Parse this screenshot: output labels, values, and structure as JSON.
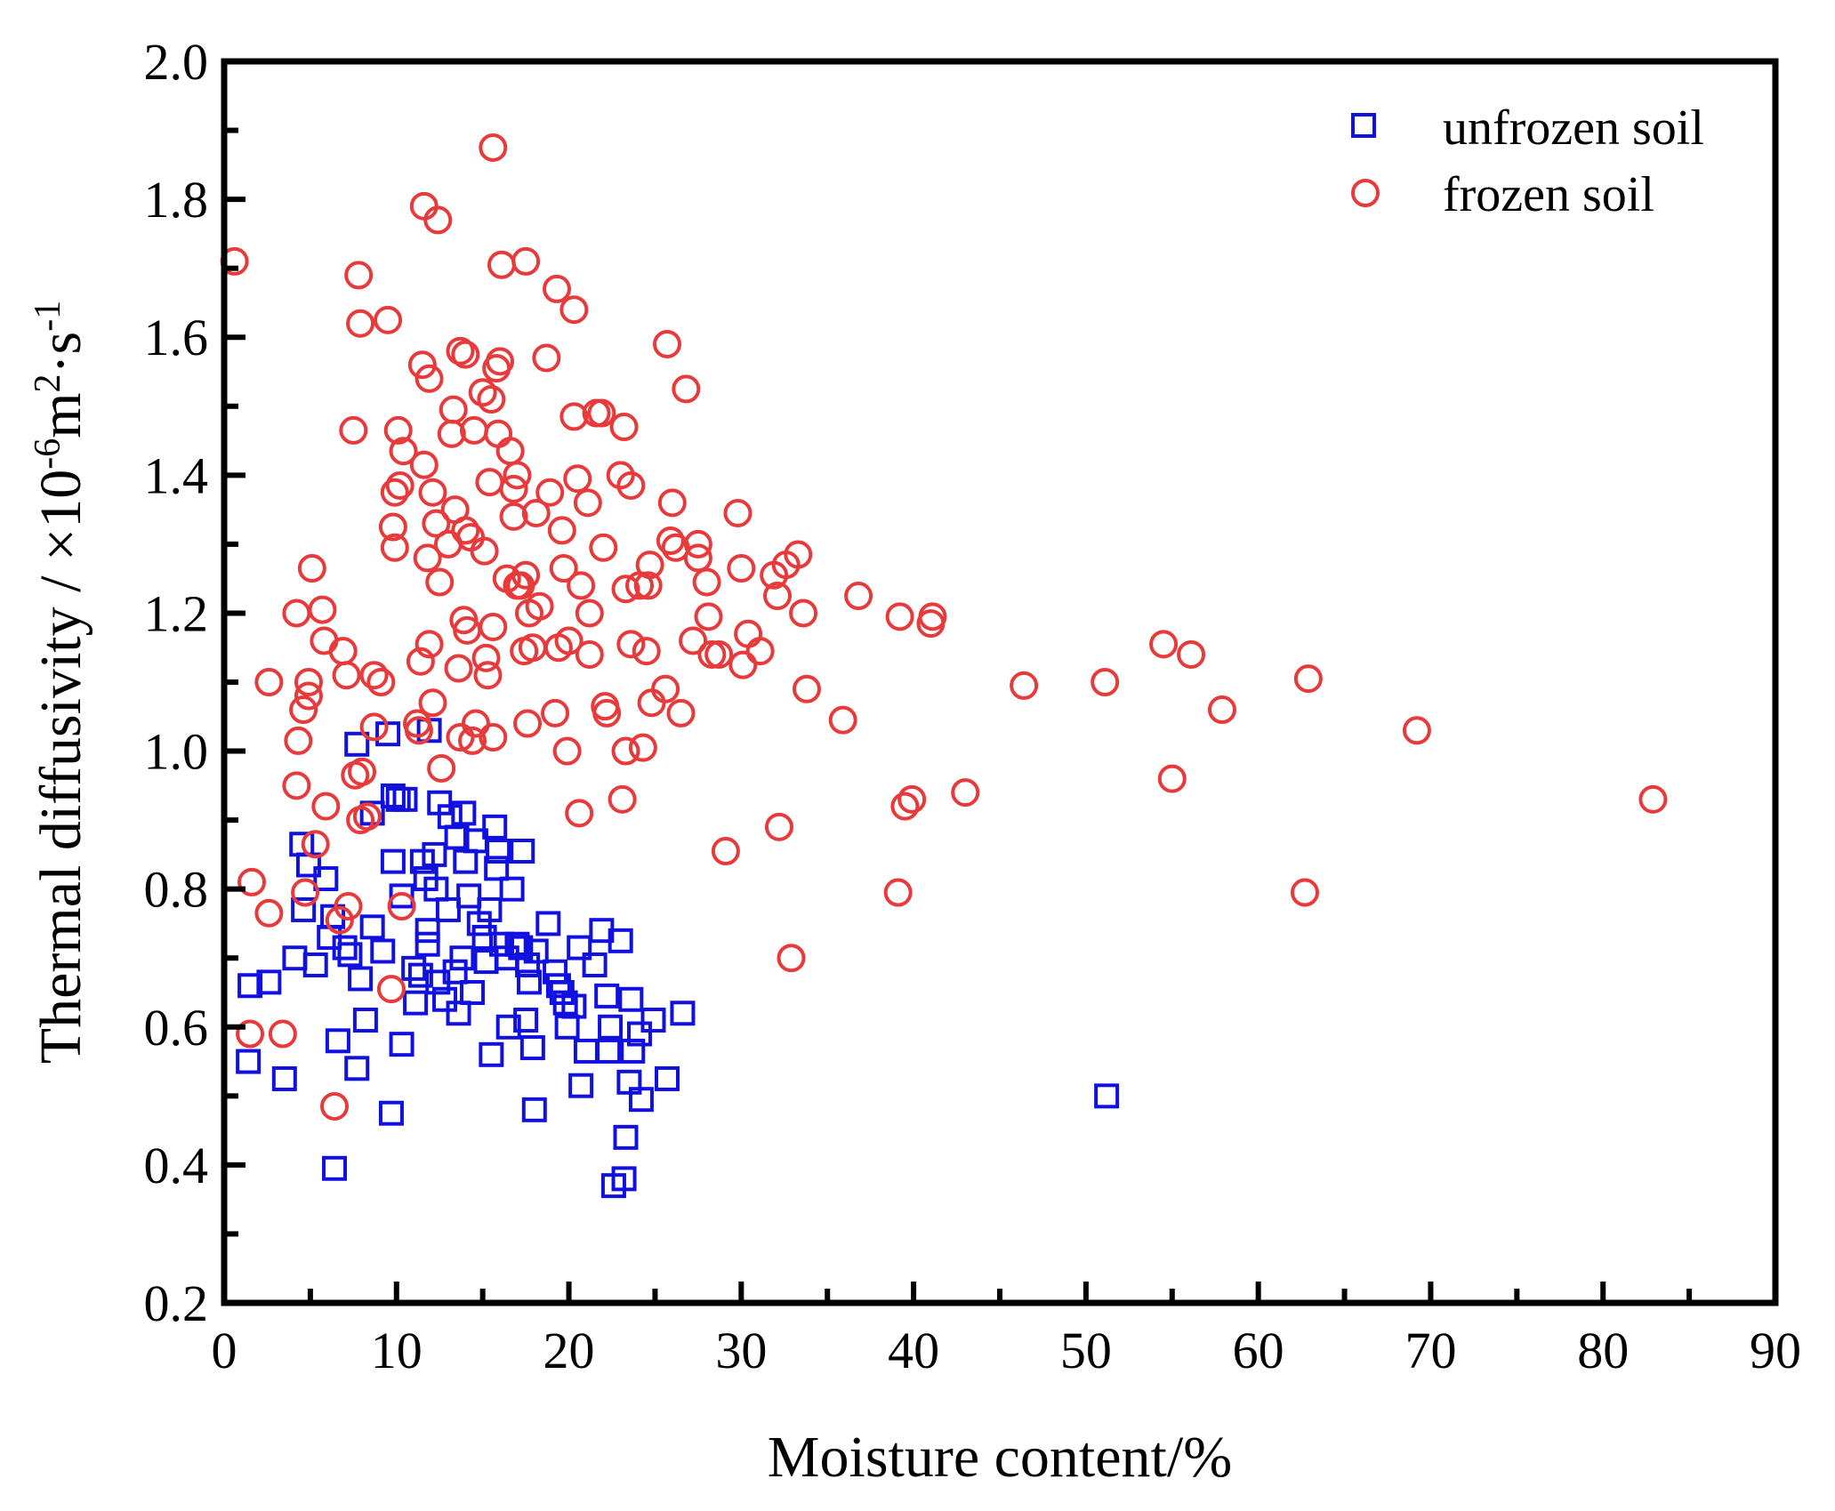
{
  "chart_data": {
    "type": "scatter",
    "title": "",
    "xlabel": "Moisture content/%",
    "ylabel": "Thermal diffusivity / ×10",
    "ylabel_exp": "-6",
    "ylabel_unit": "m",
    "ylabel_unit_exp": "2",
    "ylabel_sep": "·s",
    "ylabel_sep_exp": "-1",
    "xlim": [
      0,
      90
    ],
    "ylim": [
      0.2,
      2.0
    ],
    "xticks": [
      "0",
      "10",
      "20",
      "30",
      "40",
      "50",
      "60",
      "70",
      "80",
      "90"
    ],
    "yticks": [
      "0.2",
      "0.4",
      "0.6",
      "0.8",
      "1.0",
      "1.2",
      "1.4",
      "1.6",
      "1.8",
      "2.0"
    ],
    "legend_position": "top-right",
    "series": [
      {
        "name": "unfrozen soil",
        "marker": "square",
        "color": "#1010e0",
        "points": [
          [
            1.4,
            0.55
          ],
          [
            1.5,
            0.66
          ],
          [
            2.6,
            0.665
          ],
          [
            3.5,
            0.525
          ],
          [
            4.1,
            0.7
          ],
          [
            4.5,
            0.865
          ],
          [
            4.6,
            0.77
          ],
          [
            4.9,
            0.835
          ],
          [
            5.3,
            0.69
          ],
          [
            5.9,
            0.815
          ],
          [
            6.1,
            0.73
          ],
          [
            6.3,
            0.76
          ],
          [
            6.4,
            0.395
          ],
          [
            6.6,
            0.58
          ],
          [
            7.0,
            0.715
          ],
          [
            7.3,
            0.705
          ],
          [
            7.7,
            1.01
          ],
          [
            7.7,
            0.54
          ],
          [
            7.9,
            0.67
          ],
          [
            8.2,
            0.61
          ],
          [
            8.6,
            0.91
          ],
          [
            8.6,
            0.745
          ],
          [
            9.2,
            0.71
          ],
          [
            9.5,
            1.025
          ],
          [
            9.7,
            0.475
          ],
          [
            9.8,
            0.84
          ],
          [
            9.8,
            0.935
          ],
          [
            10.1,
            0.93
          ],
          [
            10.3,
            0.575
          ],
          [
            10.3,
            0.79
          ],
          [
            10.5,
            0.93
          ],
          [
            11.0,
            0.685
          ],
          [
            11.1,
            0.635
          ],
          [
            11.4,
            0.675
          ],
          [
            11.5,
            0.84
          ],
          [
            11.7,
            0.815
          ],
          [
            11.8,
            0.74
          ],
          [
            11.8,
            0.72
          ],
          [
            11.9,
            1.03
          ],
          [
            12.2,
            0.85
          ],
          [
            12.3,
            0.8
          ],
          [
            12.4,
            0.665
          ],
          [
            12.5,
            0.925
          ],
          [
            12.8,
            0.64
          ],
          [
            13.0,
            0.77
          ],
          [
            13.1,
            0.905
          ],
          [
            13.4,
            0.68
          ],
          [
            13.5,
            0.875
          ],
          [
            13.6,
            0.62
          ],
          [
            13.8,
            0.7
          ],
          [
            13.9,
            0.91
          ],
          [
            14.0,
            0.84
          ],
          [
            14.2,
            0.79
          ],
          [
            14.4,
            0.65
          ],
          [
            14.6,
            0.87
          ],
          [
            14.8,
            0.75
          ],
          [
            15.1,
            0.73
          ],
          [
            15.2,
            0.695
          ],
          [
            15.4,
            0.77
          ],
          [
            15.5,
            0.56
          ],
          [
            15.7,
            0.89
          ],
          [
            15.8,
            0.83
          ],
          [
            15.9,
            0.855
          ],
          [
            16.1,
            0.72
          ],
          [
            16.4,
            0.7
          ],
          [
            16.5,
            0.6
          ],
          [
            16.7,
            0.8
          ],
          [
            17.0,
            0.72
          ],
          [
            17.2,
            0.715
          ],
          [
            17.3,
            0.855
          ],
          [
            17.5,
            0.61
          ],
          [
            17.6,
            0.69
          ],
          [
            17.7,
            0.665
          ],
          [
            17.9,
            0.57
          ],
          [
            18.0,
            0.48
          ],
          [
            18.1,
            0.71
          ],
          [
            18.8,
            0.75
          ],
          [
            19.2,
            0.68
          ],
          [
            19.4,
            0.66
          ],
          [
            19.6,
            0.65
          ],
          [
            19.8,
            0.635
          ],
          [
            19.9,
            0.6
          ],
          [
            20.3,
            0.63
          ],
          [
            20.6,
            0.715
          ],
          [
            20.7,
            0.515
          ],
          [
            21.0,
            0.565
          ],
          [
            21.5,
            0.69
          ],
          [
            21.9,
            0.74
          ],
          [
            22.2,
            0.645
          ],
          [
            22.3,
            0.565
          ],
          [
            22.4,
            0.6
          ],
          [
            22.6,
            0.37
          ],
          [
            23.0,
            0.725
          ],
          [
            23.2,
            0.38
          ],
          [
            23.3,
            0.44
          ],
          [
            23.5,
            0.52
          ],
          [
            23.6,
            0.64
          ],
          [
            23.7,
            0.565
          ],
          [
            24.1,
            0.59
          ],
          [
            24.2,
            0.495
          ],
          [
            24.9,
            0.61
          ],
          [
            25.7,
            0.525
          ],
          [
            26.6,
            0.62
          ],
          [
            51.2,
            0.5
          ]
        ]
      },
      {
        "name": "frozen soil",
        "marker": "circle",
        "color": "#e8393b",
        "points": [
          [
            0.6,
            1.71
          ],
          [
            1.6,
            0.81
          ],
          [
            1.5,
            0.59
          ],
          [
            2.6,
            1.1
          ],
          [
            2.6,
            0.765
          ],
          [
            3.4,
            0.59
          ],
          [
            4.2,
            1.2
          ],
          [
            4.2,
            0.95
          ],
          [
            4.3,
            1.015
          ],
          [
            4.6,
            1.06
          ],
          [
            4.7,
            0.795
          ],
          [
            4.9,
            1.08
          ],
          [
            4.9,
            1.1
          ],
          [
            5.1,
            1.265
          ],
          [
            5.3,
            0.865
          ],
          [
            5.7,
            1.205
          ],
          [
            5.8,
            1.16
          ],
          [
            5.9,
            0.92
          ],
          [
            6.4,
            0.485
          ],
          [
            6.7,
            0.755
          ],
          [
            6.9,
            1.145
          ],
          [
            7.1,
            1.11
          ],
          [
            7.2,
            0.775
          ],
          [
            7.5,
            1.465
          ],
          [
            7.6,
            0.965
          ],
          [
            7.8,
            1.69
          ],
          [
            7.9,
            1.62
          ],
          [
            7.9,
            0.9
          ],
          [
            8.0,
            0.97
          ],
          [
            8.3,
            0.905
          ],
          [
            8.7,
            1.035
          ],
          [
            8.7,
            1.11
          ],
          [
            9.1,
            1.1
          ],
          [
            9.5,
            1.625
          ],
          [
            9.7,
            0.655
          ],
          [
            9.8,
            1.325
          ],
          [
            9.9,
            1.295
          ],
          [
            9.9,
            1.375
          ],
          [
            10.1,
            1.465
          ],
          [
            10.2,
            1.385
          ],
          [
            10.3,
            0.775
          ],
          [
            10.4,
            1.435
          ],
          [
            11.2,
            1.04
          ],
          [
            11.3,
            1.03
          ],
          [
            11.4,
            1.13
          ],
          [
            11.5,
            1.56
          ],
          [
            11.6,
            1.79
          ],
          [
            11.6,
            1.415
          ],
          [
            11.8,
            1.28
          ],
          [
            11.9,
            1.54
          ],
          [
            11.9,
            1.155
          ],
          [
            12.1,
            1.375
          ],
          [
            12.1,
            1.07
          ],
          [
            12.3,
            1.33
          ],
          [
            12.4,
            1.77
          ],
          [
            12.5,
            1.245
          ],
          [
            12.6,
            0.975
          ],
          [
            13.0,
            1.3
          ],
          [
            13.2,
            1.46
          ],
          [
            13.3,
            1.495
          ],
          [
            13.4,
            1.35
          ],
          [
            13.6,
            1.12
          ],
          [
            13.7,
            1.58
          ],
          [
            13.7,
            1.02
          ],
          [
            13.9,
            1.19
          ],
          [
            14.0,
            1.32
          ],
          [
            14.0,
            1.575
          ],
          [
            14.1,
            1.175
          ],
          [
            14.3,
            1.31
          ],
          [
            14.4,
            1.015
          ],
          [
            14.5,
            1.465
          ],
          [
            14.6,
            1.04
          ],
          [
            15.0,
            1.52
          ],
          [
            15.1,
            1.29
          ],
          [
            15.2,
            1.135
          ],
          [
            15.3,
            1.11
          ],
          [
            15.4,
            1.39
          ],
          [
            15.5,
            1.51
          ],
          [
            15.6,
            1.875
          ],
          [
            15.6,
            1.18
          ],
          [
            15.6,
            1.02
          ],
          [
            15.8,
            1.555
          ],
          [
            15.9,
            1.46
          ],
          [
            16.0,
            1.565
          ],
          [
            16.1,
            1.705
          ],
          [
            16.4,
            1.25
          ],
          [
            16.6,
            1.435
          ],
          [
            16.8,
            1.34
          ],
          [
            16.8,
            1.38
          ],
          [
            17.0,
            1.4
          ],
          [
            17.0,
            1.24
          ],
          [
            17.2,
            1.24
          ],
          [
            17.4,
            1.145
          ],
          [
            17.5,
            1.71
          ],
          [
            17.5,
            1.255
          ],
          [
            17.6,
            1.04
          ],
          [
            17.7,
            1.2
          ],
          [
            17.9,
            1.15
          ],
          [
            18.1,
            1.345
          ],
          [
            18.3,
            1.21
          ],
          [
            18.7,
            1.57
          ],
          [
            18.9,
            1.375
          ],
          [
            19.2,
            1.055
          ],
          [
            19.3,
            1.67
          ],
          [
            19.4,
            1.15
          ],
          [
            19.6,
            1.32
          ],
          [
            19.7,
            1.265
          ],
          [
            19.9,
            1.0
          ],
          [
            20.0,
            1.16
          ],
          [
            20.3,
            1.64
          ],
          [
            20.3,
            1.485
          ],
          [
            20.5,
            1.395
          ],
          [
            20.6,
            0.91
          ],
          [
            20.7,
            1.24
          ],
          [
            21.1,
            1.36
          ],
          [
            21.2,
            1.2
          ],
          [
            21.2,
            1.14
          ],
          [
            21.6,
            1.49
          ],
          [
            21.9,
            1.49
          ],
          [
            22.0,
            1.295
          ],
          [
            22.1,
            1.065
          ],
          [
            22.2,
            1.055
          ],
          [
            23.0,
            1.4
          ],
          [
            23.1,
            0.93
          ],
          [
            23.2,
            1.47
          ],
          [
            23.3,
            1.235
          ],
          [
            23.3,
            1.0
          ],
          [
            23.6,
            1.155
          ],
          [
            23.6,
            1.385
          ],
          [
            24.1,
            1.24
          ],
          [
            24.3,
            1.005
          ],
          [
            24.5,
            1.145
          ],
          [
            24.6,
            1.24
          ],
          [
            24.7,
            1.27
          ],
          [
            24.8,
            1.07
          ],
          [
            25.6,
            1.09
          ],
          [
            25.7,
            1.59
          ],
          [
            25.9,
            1.305
          ],
          [
            26.0,
            1.36
          ],
          [
            26.2,
            1.295
          ],
          [
            26.5,
            1.055
          ],
          [
            26.8,
            1.525
          ],
          [
            27.2,
            1.16
          ],
          [
            27.5,
            1.3
          ],
          [
            27.5,
            1.28
          ],
          [
            28.0,
            1.245
          ],
          [
            28.1,
            1.195
          ],
          [
            28.3,
            1.14
          ],
          [
            28.7,
            1.14
          ],
          [
            29.1,
            0.855
          ],
          [
            29.8,
            1.345
          ],
          [
            30.0,
            1.265
          ],
          [
            30.1,
            1.125
          ],
          [
            30.4,
            1.17
          ],
          [
            31.1,
            1.145
          ],
          [
            31.9,
            1.255
          ],
          [
            32.1,
            1.225
          ],
          [
            32.2,
            0.89
          ],
          [
            32.6,
            1.27
          ],
          [
            32.9,
            0.7
          ],
          [
            33.3,
            1.285
          ],
          [
            33.6,
            1.2
          ],
          [
            33.8,
            1.09
          ],
          [
            35.9,
            1.045
          ],
          [
            36.8,
            1.225
          ],
          [
            39.1,
            0.795
          ],
          [
            39.2,
            1.195
          ],
          [
            39.5,
            0.92
          ],
          [
            39.9,
            0.93
          ],
          [
            41.1,
            1.195
          ],
          [
            41.0,
            1.185
          ],
          [
            43.0,
            0.94
          ],
          [
            46.4,
            1.095
          ],
          [
            51.1,
            1.1
          ],
          [
            54.5,
            1.155
          ],
          [
            55.0,
            0.96
          ],
          [
            56.1,
            1.14
          ],
          [
            57.9,
            1.06
          ],
          [
            62.7,
            0.795
          ],
          [
            62.9,
            1.105
          ],
          [
            69.2,
            1.03
          ],
          [
            82.9,
            0.93
          ]
        ]
      }
    ]
  }
}
